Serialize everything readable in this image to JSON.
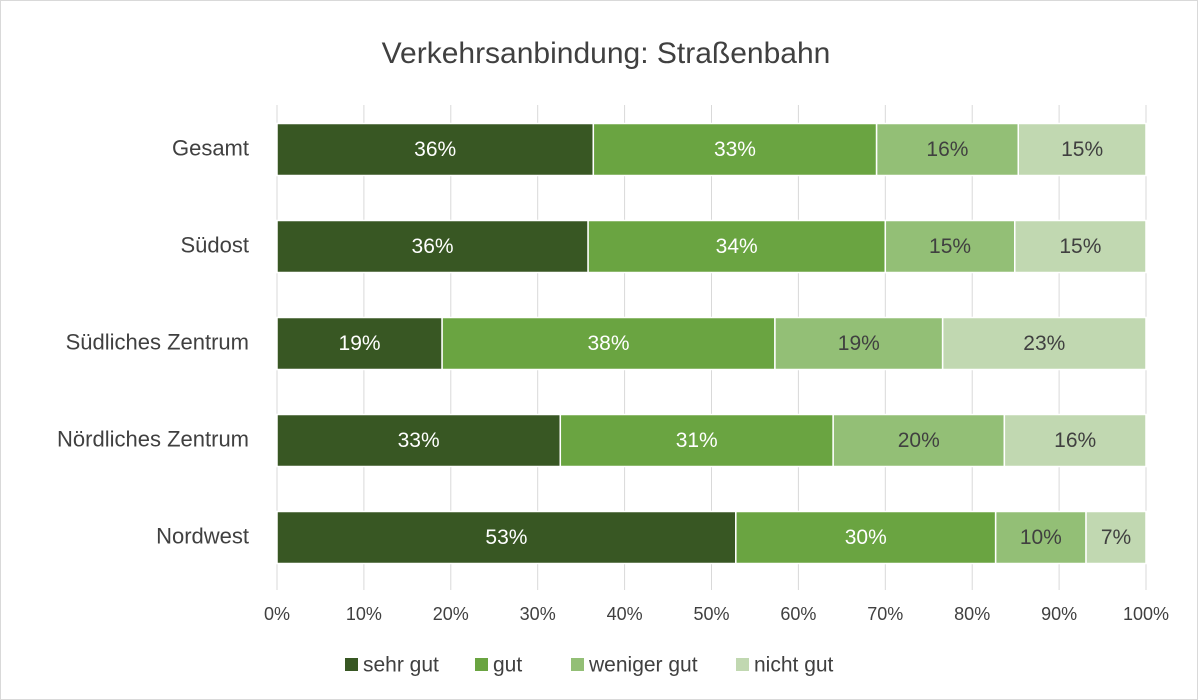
{
  "chart_data": {
    "type": "stacked_bar_horizontal",
    "title": "Verkehrsanbindung: Straßenbahn",
    "categories": [
      "Gesamt",
      "Südost",
      "Südliches Zentrum",
      "Nördliches Zentrum",
      "Nordwest"
    ],
    "series": [
      {
        "name": "sehr gut",
        "color": "#385723",
        "values": [
          36.4,
          35.8,
          19.0,
          32.6,
          52.8
        ],
        "value_labels": [
          "36%",
          "36%",
          "19%",
          "33%",
          "53%"
        ]
      },
      {
        "name": "gut",
        "color": "#6aa441",
        "values": [
          32.6,
          34.2,
          38.3,
          31.4,
          29.9
        ],
        "value_labels": [
          "33%",
          "34%",
          "38%",
          "31%",
          "30%"
        ]
      },
      {
        "name": "weniger gut",
        "color": "#93bf76",
        "values": [
          16.3,
          14.9,
          19.3,
          19.7,
          10.4
        ],
        "value_labels": [
          "16%",
          "15%",
          "19%",
          "20%",
          "10%"
        ]
      },
      {
        "name": "nicht gut",
        "color": "#c1d8b1",
        "values": [
          14.7,
          15.1,
          23.4,
          16.3,
          6.9
        ],
        "value_labels": [
          "15%",
          "15%",
          "23%",
          "16%",
          "7%"
        ]
      }
    ],
    "xlim": [
      0,
      100
    ],
    "xticks": [
      {
        "value": 0,
        "label": "0%"
      },
      {
        "value": 10,
        "label": "10%"
      },
      {
        "value": 20,
        "label": "20%"
      },
      {
        "value": 30,
        "label": "30%"
      },
      {
        "value": 40,
        "label": "40%"
      },
      {
        "value": 50,
        "label": "50%"
      },
      {
        "value": 60,
        "label": "60%"
      },
      {
        "value": 70,
        "label": "70%"
      },
      {
        "value": 80,
        "label": "80%"
      },
      {
        "value": 90,
        "label": "90%"
      },
      {
        "value": 100,
        "label": "100%"
      }
    ],
    "grid": true,
    "legend": "bottom"
  }
}
